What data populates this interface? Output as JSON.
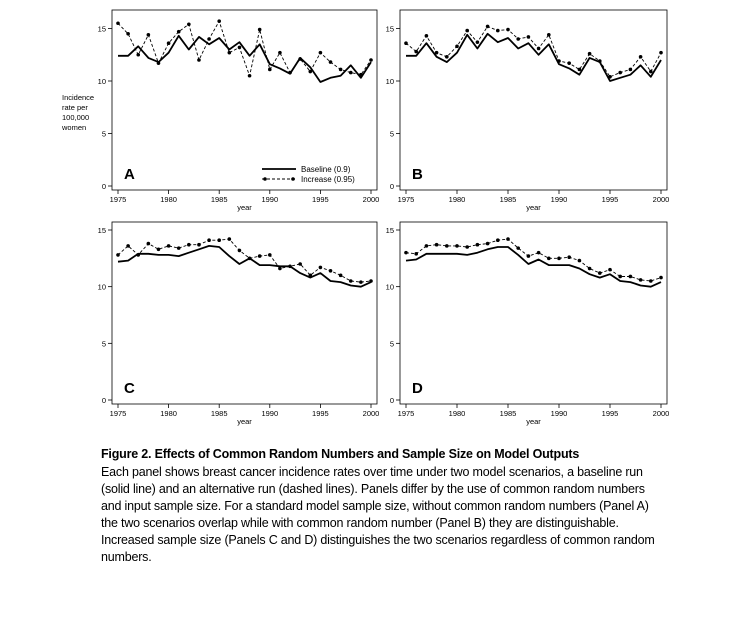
{
  "figure": {
    "ylabel_lines": [
      "Incidence",
      "rate per",
      "100,000",
      "women"
    ],
    "xlabel": "year",
    "legend": {
      "solid": "Baseline (0.9)",
      "dashed": "Increase (0.95)"
    }
  },
  "chart_data": [
    {
      "type": "line",
      "panel": "A",
      "xlabel": "year",
      "ylabel": "Incidence rate per 100,000 women",
      "xlim": [
        1975,
        2000
      ],
      "ylim": [
        0,
        16
      ],
      "xticks": [
        1975,
        1980,
        1985,
        1990,
        1995,
        2000
      ],
      "yticks": [
        0,
        5,
        10,
        15
      ],
      "x": [
        1975,
        1976,
        1977,
        1978,
        1979,
        1980,
        1981,
        1982,
        1983,
        1984,
        1985,
        1986,
        1987,
        1988,
        1989,
        1990,
        1991,
        1992,
        1993,
        1994,
        1995,
        1996,
        1997,
        1998,
        1999,
        2000
      ],
      "series": [
        {
          "name": "Baseline (0.9)",
          "style": "solid",
          "values": [
            12.4,
            12.4,
            13.3,
            12.2,
            11.8,
            12.7,
            14.3,
            13.0,
            14.2,
            13.5,
            14.1,
            13.0,
            13.7,
            12.4,
            13.5,
            11.6,
            11.2,
            10.7,
            12.2,
            11.3,
            9.9,
            10.3,
            10.5,
            11.5,
            10.3,
            11.8
          ]
        },
        {
          "name": "Increase (0.95)",
          "style": "dashed",
          "values": [
            15.5,
            14.5,
            12.5,
            14.4,
            11.7,
            13.6,
            14.7,
            15.4,
            12.0,
            14.0,
            15.7,
            12.7,
            13.2,
            10.5,
            14.9,
            11.1,
            12.7,
            10.8,
            12.1,
            10.9,
            12.7,
            11.8,
            11.1,
            10.8,
            10.6,
            12.0
          ]
        }
      ],
      "legend": "bottom-right"
    },
    {
      "type": "line",
      "panel": "B",
      "xlabel": "year",
      "xlim": [
        1975,
        2000
      ],
      "ylim": [
        0,
        16
      ],
      "xticks": [
        1975,
        1980,
        1985,
        1990,
        1995,
        2000
      ],
      "yticks": [
        0,
        5,
        10,
        15
      ],
      "x": [
        1975,
        1976,
        1977,
        1978,
        1979,
        1980,
        1981,
        1982,
        1983,
        1984,
        1985,
        1986,
        1987,
        1988,
        1989,
        1990,
        1991,
        1992,
        1993,
        1994,
        1995,
        1996,
        1997,
        1998,
        1999,
        2000
      ],
      "series": [
        {
          "style": "solid",
          "values": [
            12.4,
            12.4,
            13.6,
            12.3,
            11.8,
            12.7,
            14.4,
            13.1,
            14.5,
            13.7,
            14.1,
            13.1,
            13.6,
            12.5,
            13.5,
            11.6,
            11.2,
            10.6,
            12.2,
            11.8,
            10.0,
            10.3,
            10.6,
            11.5,
            10.4,
            12.0
          ]
        },
        {
          "style": "dashed",
          "values": [
            13.6,
            12.8,
            14.3,
            12.7,
            12.3,
            13.3,
            14.8,
            13.7,
            15.2,
            14.8,
            14.9,
            14.0,
            14.2,
            13.1,
            14.4,
            11.9,
            11.7,
            11.1,
            12.6,
            11.9,
            10.4,
            10.8,
            11.1,
            12.3,
            10.9,
            12.7
          ]
        }
      ]
    },
    {
      "type": "line",
      "panel": "C",
      "xlabel": "year",
      "xlim": [
        1975,
        2000
      ],
      "ylim": [
        0,
        15
      ],
      "xticks": [
        1975,
        1980,
        1985,
        1990,
        1995,
        2000
      ],
      "yticks": [
        0,
        5,
        10,
        15
      ],
      "x": [
        1975,
        1976,
        1977,
        1978,
        1979,
        1980,
        1981,
        1982,
        1983,
        1984,
        1985,
        1986,
        1987,
        1988,
        1989,
        1990,
        1991,
        1992,
        1993,
        1994,
        1995,
        1996,
        1997,
        1998,
        1999,
        2000
      ],
      "series": [
        {
          "style": "solid",
          "values": [
            12.2,
            12.3,
            12.9,
            12.9,
            12.8,
            12.8,
            12.7,
            13.0,
            13.3,
            13.6,
            13.5,
            12.7,
            12.0,
            12.5,
            11.9,
            11.9,
            11.8,
            11.8,
            11.2,
            10.8,
            11.2,
            10.5,
            10.4,
            10.1,
            10.0,
            10.4
          ]
        },
        {
          "style": "dashed",
          "values": [
            12.8,
            13.6,
            12.8,
            13.8,
            13.3,
            13.6,
            13.4,
            13.7,
            13.7,
            14.1,
            14.1,
            14.2,
            13.2,
            12.5,
            12.7,
            12.8,
            11.6,
            11.8,
            12.0,
            11.0,
            11.7,
            11.4,
            11.0,
            10.5,
            10.4,
            10.5
          ]
        }
      ]
    },
    {
      "type": "line",
      "panel": "D",
      "xlabel": "year",
      "xlim": [
        1975,
        2000
      ],
      "ylim": [
        0,
        15
      ],
      "xticks": [
        1975,
        1980,
        1985,
        1990,
        1995,
        2000
      ],
      "yticks": [
        0,
        5,
        10,
        15
      ],
      "x": [
        1975,
        1976,
        1977,
        1978,
        1979,
        1980,
        1981,
        1982,
        1983,
        1984,
        1985,
        1986,
        1987,
        1988,
        1989,
        1990,
        1991,
        1992,
        1993,
        1994,
        1995,
        1996,
        1997,
        1998,
        1999,
        2000
      ],
      "series": [
        {
          "style": "solid",
          "values": [
            12.3,
            12.4,
            12.9,
            12.9,
            12.9,
            12.9,
            12.8,
            13.0,
            13.3,
            13.5,
            13.5,
            12.8,
            12.0,
            12.4,
            11.9,
            11.9,
            11.9,
            11.6,
            11.1,
            10.8,
            11.1,
            10.5,
            10.4,
            10.1,
            10.0,
            10.4
          ]
        },
        {
          "style": "dashed",
          "values": [
            13.0,
            12.9,
            13.6,
            13.7,
            13.6,
            13.6,
            13.5,
            13.7,
            13.8,
            14.1,
            14.2,
            13.4,
            12.7,
            13.0,
            12.5,
            12.5,
            12.6,
            12.3,
            11.6,
            11.2,
            11.5,
            10.9,
            10.9,
            10.6,
            10.5,
            10.8
          ]
        }
      ]
    }
  ],
  "caption": {
    "title": "Figure 2. Effects of Common Random Numbers and Sample Size on Model Outputs",
    "body": "Each panel shows breast cancer incidence rates over time under two model scenarios, a baseline run (solid line) and an alternative run (dashed lines). Panels differ by the use of common random numbers and input sample size. For a standard model sample size, without common random numbers (Panel A) the two scenarios overlap while with common random number (Panel B) they are distinguishable. Increased sample size (Panels C and D) distinguishes the two scenarios regardless of common random numbers."
  }
}
